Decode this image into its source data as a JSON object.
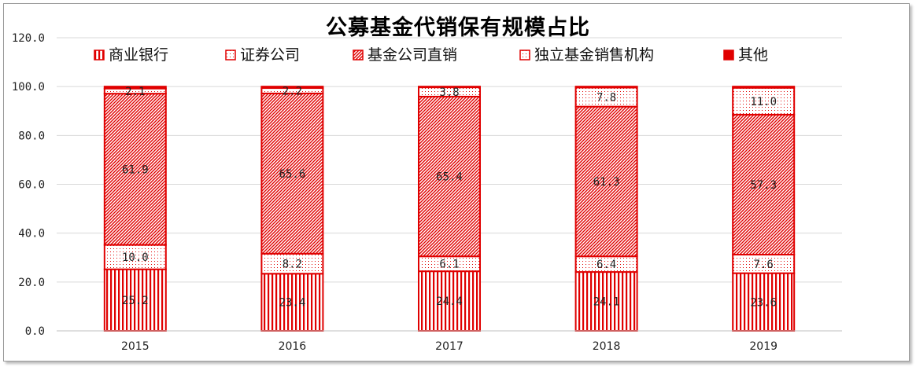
{
  "chart_data": {
    "type": "bar",
    "stacked": true,
    "title": "公募基金代销保有规模占比",
    "categories": [
      "2015",
      "2016",
      "2017",
      "2018",
      "2019"
    ],
    "ylim": [
      0,
      120
    ],
    "yticks": [
      "0.0",
      "20.0",
      "40.0",
      "60.0",
      "80.0",
      "100.0",
      "120.0"
    ],
    "grid": true,
    "legend_position": "top",
    "series": [
      {
        "name": "商业银行",
        "pattern": "vertical-stripes",
        "values": [
          25.2,
          23.4,
          24.4,
          24.1,
          23.6
        ],
        "labels": [
          "25.2",
          "23.4",
          "24.4",
          "24.1",
          "23.6"
        ]
      },
      {
        "name": "证券公司",
        "pattern": "dots",
        "values": [
          10.0,
          8.2,
          6.1,
          6.4,
          7.6
        ],
        "labels": [
          "10.0",
          "8.2",
          "6.1",
          "6.4",
          "7.6"
        ]
      },
      {
        "name": "基金公司直销",
        "pattern": "diagonal-hatch",
        "values": [
          61.9,
          65.6,
          65.4,
          61.3,
          57.3
        ],
        "labels": [
          "61.9",
          "65.6",
          "65.4",
          "61.3",
          "57.3"
        ]
      },
      {
        "name": "独立基金销售机构",
        "pattern": "dots",
        "values": [
          2.1,
          2.2,
          3.8,
          7.8,
          11.0
        ],
        "labels": [
          "2.1",
          "2.2",
          "3.8",
          "7.8",
          "11.0"
        ]
      },
      {
        "name": "其他",
        "pattern": "solid",
        "values": [
          0.8,
          0.6,
          0.3,
          0.4,
          0.5
        ],
        "labels": [
          "",
          "",
          "",
          "",
          ""
        ]
      }
    ],
    "color": "#e00000"
  }
}
